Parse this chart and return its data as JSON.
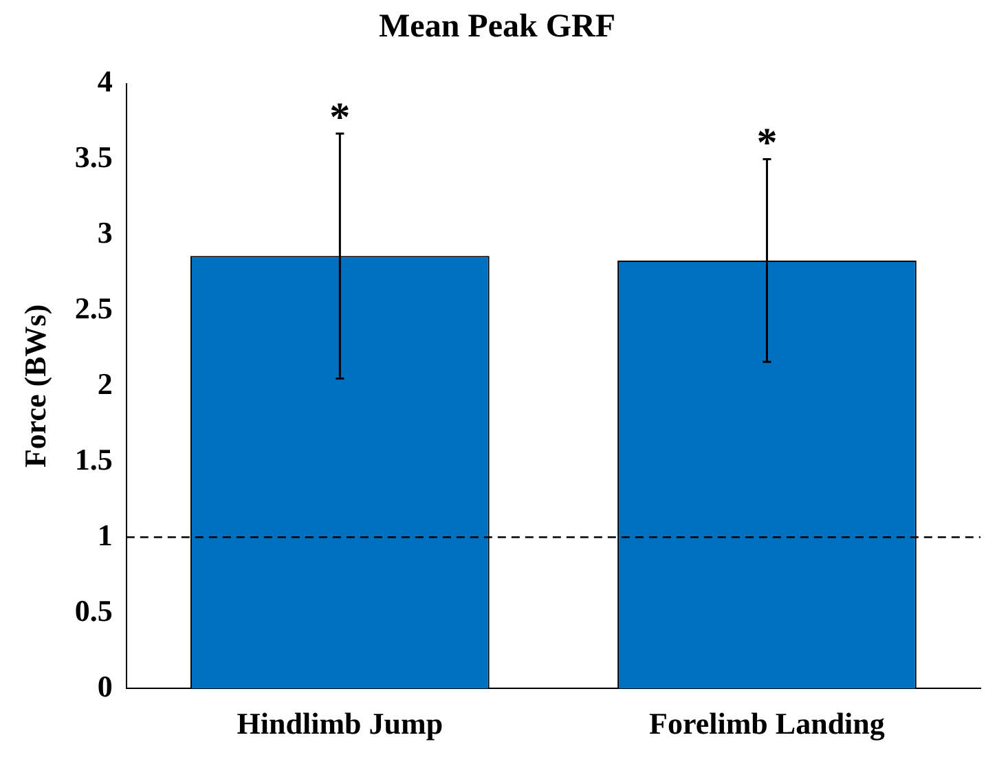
{
  "chart_data": {
    "type": "bar",
    "title": "Mean Peak GRF",
    "ylabel": "Force (BWs)",
    "categories": [
      "Hindlimb Jump",
      "Forelimb Landing"
    ],
    "values": [
      2.86,
      2.83
    ],
    "errors": [
      0.81,
      0.67
    ],
    "color": "#0070c0",
    "ylim": [
      0,
      4
    ],
    "yticks": [
      0,
      0.5,
      1,
      1.5,
      2,
      2.5,
      3,
      3.5,
      4
    ],
    "grid": false,
    "legend": false,
    "ref_lines": [
      {
        "axis": "y",
        "value": 1,
        "color": "#000000",
        "line_style": "dashed"
      }
    ],
    "annotations": [
      "*",
      "*"
    ]
  }
}
